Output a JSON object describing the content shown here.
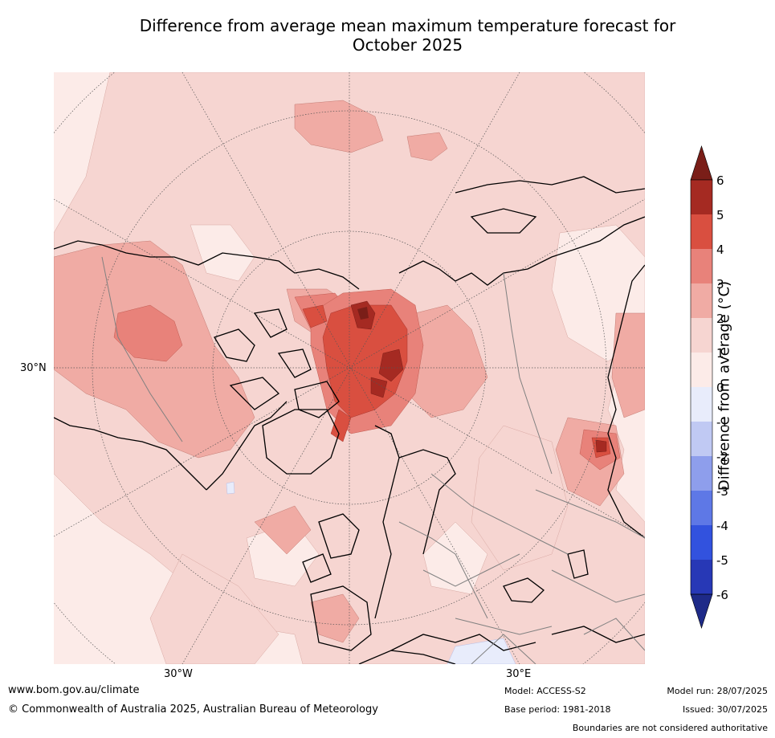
{
  "title": "Difference from average mean maximum temperature forecast for October 2025",
  "title_line1": "Difference from average mean maximum temperature forecast for",
  "title_line2": "October 2025",
  "axis_labels": {
    "left_lat": "30°N",
    "bottom_lon_w": "30°W",
    "bottom_lon_e": "30°E"
  },
  "colorbar": {
    "title": "Difference from average (°C)",
    "ticks": [
      "6",
      "5",
      "4",
      "3",
      "2",
      "1",
      "0",
      "-1",
      "-2",
      "-3",
      "-4",
      "-5",
      "-6"
    ],
    "colors": [
      "#a52a22",
      "#d94f40",
      "#e8827a",
      "#f0aba4",
      "#f6d5d1",
      "#fcebe8",
      "#e8ecfb",
      "#c0c9f3",
      "#8e9eec",
      "#5e78e6",
      "#3252de",
      "#2738b6"
    ],
    "over_color": "#7a1e18",
    "under_color": "#1e2a88"
  },
  "footer": {
    "website": "www.bom.gov.au/climate",
    "copyright": "© Commonwealth of Australia 2025, Australian Bureau of Meteorology",
    "model": "Model: ACCESS-S2",
    "base_period": "Base period: 1981-2018",
    "model_run": "Model run: 28/07/2025",
    "issued": "Issued: 30/07/2025",
    "disclaimer": "Boundaries are not considered authoritative"
  },
  "colors": {
    "background_anomaly": "#fcebe8",
    "coastline": "#000000",
    "borders": "#808080"
  }
}
